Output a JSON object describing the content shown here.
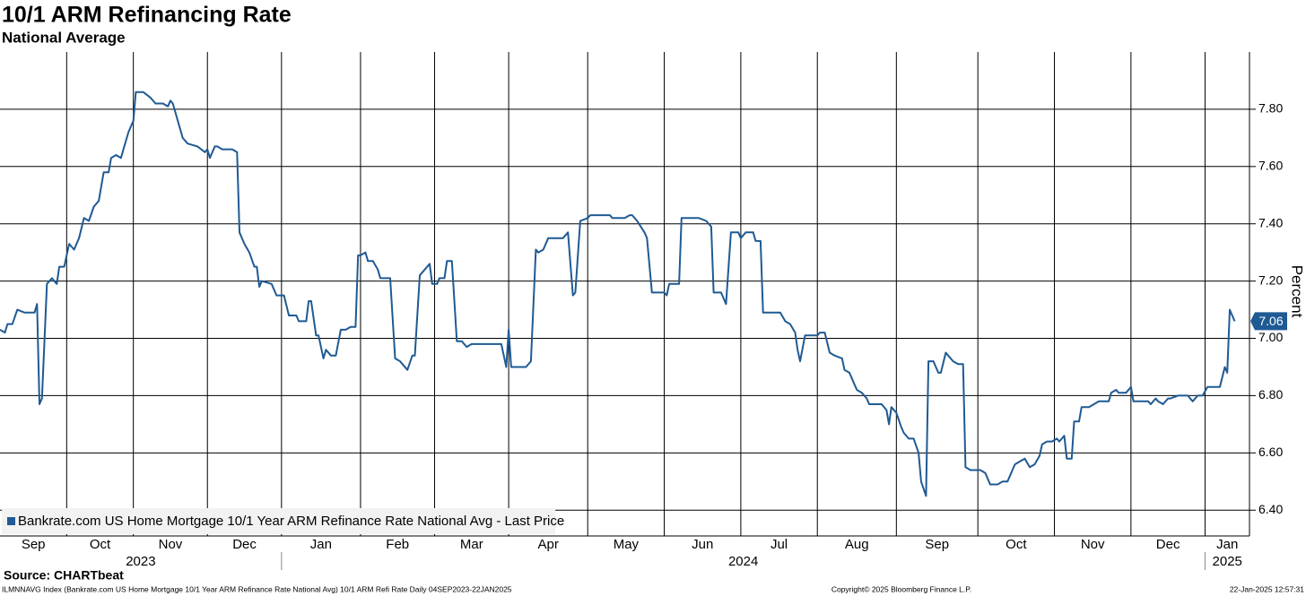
{
  "chart_data": {
    "type": "line",
    "title": "10/1 ARM Refinancing Rate",
    "subtitle": "National Average",
    "y_axis_label": "Percent",
    "source": "Source: CHARTbeat",
    "footer_left": "ILMNNAVG Index (Bankrate.com US Home Mortgage 10/1 Year ARM Refinance Rate National Avg) 10/1 ARM Refi Rate  Daily 04SEP2023-22JAN2025",
    "footer_center": "Copyright© 2025 Bloomberg Finance L.P.",
    "footer_right": "22-Jan-2025 12:57:31",
    "month_labels": [
      "Sep",
      "Oct",
      "Nov",
      "Dec",
      "Jan",
      "Feb",
      "Mar",
      "Apr",
      "May",
      "Jun",
      "Jul",
      "Aug",
      "Sep",
      "Oct",
      "Nov",
      "Dec",
      "Jan"
    ],
    "years": [
      "2023",
      "2024",
      "2025"
    ],
    "xlim": [
      0,
      506
    ],
    "xticks": [
      27,
      54,
      84,
      114,
      146,
      176,
      206,
      238,
      269,
      300,
      331,
      363,
      396,
      427,
      458,
      488
    ],
    "ylim": [
      6.31,
      8.0
    ],
    "yticks": [
      {
        "value": 6.4,
        "label": "6.40"
      },
      {
        "value": 6.6,
        "label": "6.60"
      },
      {
        "value": 6.8,
        "label": "6.80"
      },
      {
        "value": 7.0,
        "label": "7.00"
      },
      {
        "value": 7.2,
        "label": "7.20"
      },
      {
        "value": 7.4,
        "label": "7.40"
      },
      {
        "value": 7.6,
        "label": "7.60"
      },
      {
        "value": 7.8,
        "label": "7.80"
      }
    ],
    "grid": true,
    "legend": "bottom-left",
    "x": [
      0,
      2,
      3,
      5,
      7,
      10,
      14,
      15,
      16,
      17,
      19,
      21,
      23,
      24,
      26,
      28,
      30,
      32,
      34,
      36,
      38,
      40,
      42,
      44,
      45,
      47,
      49,
      50,
      52,
      54,
      55,
      58,
      61,
      63,
      66,
      68,
      69,
      70,
      72,
      74,
      76,
      80,
      83,
      84,
      85,
      87,
      88,
      90,
      94,
      96,
      97,
      99,
      101,
      103,
      104,
      105,
      106,
      110,
      112,
      115,
      117,
      120,
      121,
      124,
      125,
      126,
      128,
      129,
      131,
      132,
      134,
      136,
      138,
      140,
      142,
      144,
      145,
      146,
      148,
      149,
      151,
      153,
      154,
      158,
      160,
      162,
      163,
      165,
      167,
      168,
      170,
      172,
      174,
      175,
      177,
      178,
      180,
      181,
      183,
      185,
      187,
      189,
      191,
      203,
      205,
      206,
      207,
      213,
      215,
      217,
      218,
      220,
      222,
      228,
      230,
      232,
      233,
      235,
      238,
      239,
      247,
      248,
      253,
      255,
      256,
      258,
      261,
      262,
      264,
      269,
      270,
      271,
      275,
      276,
      283,
      286,
      288,
      289,
      292,
      294,
      296,
      299,
      300,
      302,
      305,
      306,
      308,
      309,
      316,
      318,
      320,
      322,
      323,
      324,
      326,
      331,
      332,
      334,
      336,
      338,
      341,
      342,
      344,
      346,
      347,
      349,
      351,
      352,
      357,
      359,
      360,
      361,
      363,
      365,
      366,
      368,
      370,
      372,
      373,
      375,
      376,
      378,
      380,
      381,
      383,
      384,
      386,
      388,
      390,
      391,
      393,
      397,
      399,
      401,
      404,
      406,
      408,
      410,
      411,
      413,
      415,
      417,
      419,
      421,
      422,
      424,
      426,
      428,
      429,
      431,
      432,
      434,
      435,
      437,
      438,
      441,
      443,
      445,
      449,
      450,
      452,
      453,
      456,
      458,
      459,
      465,
      466,
      468,
      469,
      471,
      473,
      474,
      477,
      479,
      481,
      483,
      485,
      487,
      489,
      494,
      496,
      497,
      498,
      500
    ],
    "series": [
      {
        "name": "Bankrate.com US Home Mortgage 10/1 Year ARM Refinance Rate National Avg - Last Price",
        "color": "#1f5a94",
        "values": [
          7.03,
          7.02,
          7.05,
          7.05,
          7.1,
          7.09,
          7.09,
          7.12,
          6.77,
          6.79,
          7.19,
          7.21,
          7.19,
          7.25,
          7.25,
          7.33,
          7.31,
          7.35,
          7.42,
          7.41,
          7.46,
          7.48,
          7.58,
          7.58,
          7.63,
          7.64,
          7.63,
          7.66,
          7.72,
          7.76,
          7.86,
          7.86,
          7.84,
          7.82,
          7.82,
          7.81,
          7.83,
          7.82,
          7.76,
          7.7,
          7.68,
          7.67,
          7.65,
          7.66,
          7.63,
          7.67,
          7.67,
          7.66,
          7.66,
          7.65,
          7.37,
          7.33,
          7.3,
          7.25,
          7.25,
          7.18,
          7.2,
          7.19,
          7.15,
          7.15,
          7.08,
          7.08,
          7.06,
          7.06,
          7.13,
          7.13,
          7.01,
          7.01,
          6.93,
          6.96,
          6.94,
          6.94,
          7.03,
          7.03,
          7.04,
          7.04,
          7.29,
          7.29,
          7.3,
          7.27,
          7.27,
          7.24,
          7.21,
          7.21,
          6.93,
          6.92,
          6.91,
          6.89,
          6.94,
          6.94,
          7.22,
          7.24,
          7.26,
          7.19,
          7.19,
          7.21,
          7.21,
          7.27,
          7.27,
          6.99,
          6.99,
          6.97,
          6.98,
          6.98,
          6.9,
          7.03,
          6.9,
          6.9,
          6.92,
          7.31,
          7.3,
          7.31,
          7.35,
          7.35,
          7.37,
          7.15,
          7.16,
          7.41,
          7.42,
          7.43,
          7.43,
          7.42,
          7.42,
          7.43,
          7.43,
          7.41,
          7.37,
          7.35,
          7.16,
          7.16,
          7.15,
          7.19,
          7.19,
          7.42,
          7.42,
          7.41,
          7.39,
          7.16,
          7.16,
          7.12,
          7.37,
          7.37,
          7.35,
          7.37,
          7.37,
          7.34,
          7.34,
          7.09,
          7.09,
          7.06,
          7.05,
          7.02,
          6.96,
          6.92,
          7.01,
          7.01,
          7.02,
          7.02,
          6.95,
          6.94,
          6.93,
          6.89,
          6.88,
          6.84,
          6.82,
          6.81,
          6.79,
          6.77,
          6.77,
          6.75,
          6.7,
          6.76,
          6.74,
          6.69,
          6.67,
          6.65,
          6.65,
          6.6,
          6.5,
          6.45,
          6.92,
          6.92,
          6.88,
          6.88,
          6.95,
          6.94,
          6.92,
          6.91,
          6.91,
          6.55,
          6.54,
          6.54,
          6.53,
          6.49,
          6.49,
          6.5,
          6.5,
          6.54,
          6.56,
          6.57,
          6.58,
          6.55,
          6.56,
          6.59,
          6.63,
          6.64,
          6.64,
          6.65,
          6.64,
          6.66,
          6.58,
          6.58,
          6.71,
          6.71,
          6.76,
          6.76,
          6.77,
          6.78,
          6.78,
          6.81,
          6.82,
          6.81,
          6.81,
          6.83,
          6.78,
          6.78,
          6.77,
          6.79,
          6.78,
          6.77,
          6.79,
          6.79,
          6.8,
          6.8,
          6.8,
          6.78,
          6.8,
          6.8,
          6.83,
          6.83,
          6.9,
          6.88,
          7.1,
          7.06
        ]
      }
    ]
  }
}
